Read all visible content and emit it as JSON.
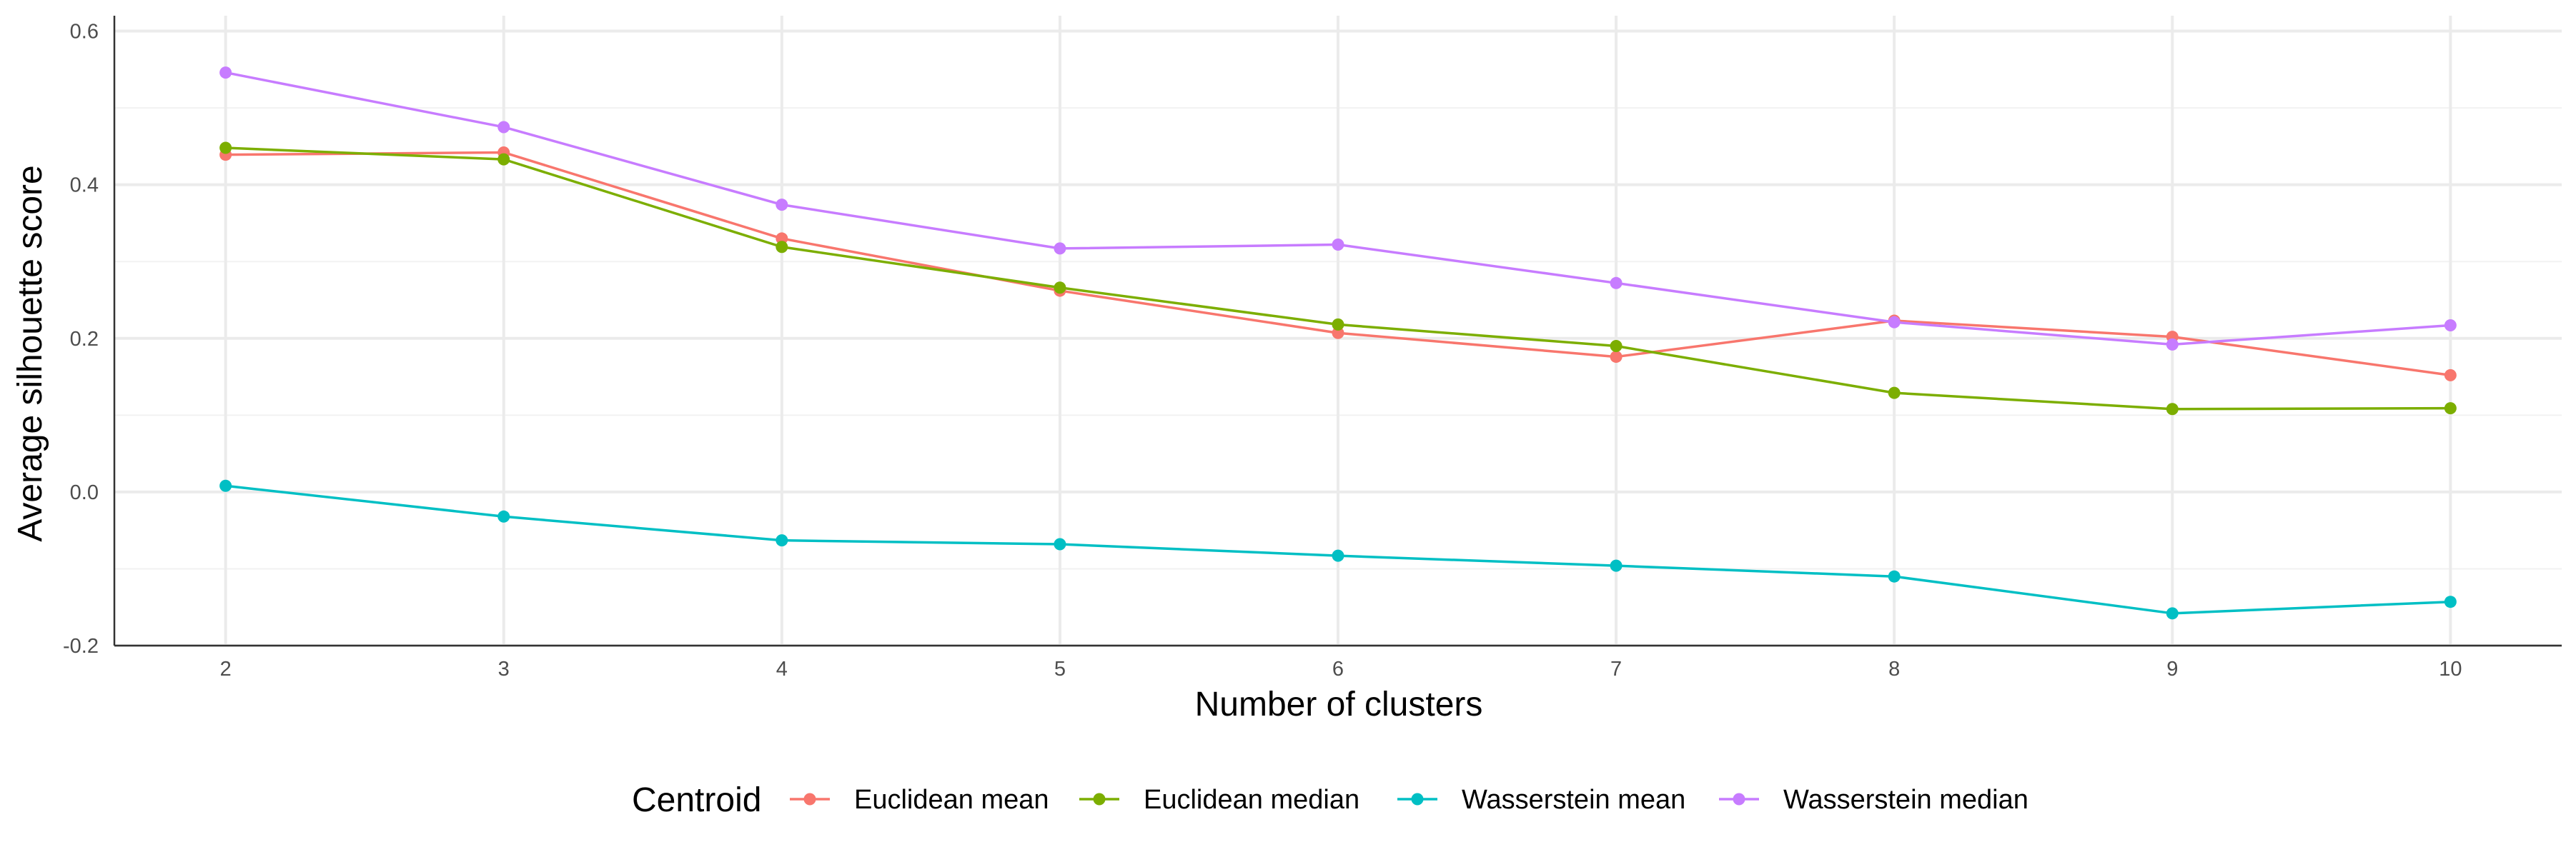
{
  "chart_data": {
    "type": "line",
    "xlabel": "Number of clusters",
    "ylabel": "Average silhouette score",
    "x": [
      2,
      3,
      4,
      5,
      6,
      7,
      8,
      9,
      10
    ],
    "xlim": [
      1.6,
      10.4
    ],
    "ylim": [
      -0.2,
      0.62
    ],
    "xticks": [
      "2",
      "3",
      "4",
      "5",
      "6",
      "7",
      "8",
      "9",
      "10"
    ],
    "yticks": [
      "-0.2",
      "0.0",
      "0.2",
      "0.4",
      "0.6"
    ],
    "ytick_values": [
      -0.2,
      0.0,
      0.2,
      0.4,
      0.6
    ],
    "grid": true,
    "legend_title": "Centroid",
    "legend_position": "bottom",
    "series": [
      {
        "name": "Euclidean mean",
        "color": "#F8766D",
        "values": [
          0.439,
          0.442,
          0.33,
          0.262,
          0.207,
          0.176,
          0.223,
          0.202,
          0.152
        ]
      },
      {
        "name": "Euclidean median",
        "color": "#7CAE00",
        "values": [
          0.448,
          0.433,
          0.319,
          0.266,
          0.218,
          0.19,
          0.129,
          0.108,
          0.109
        ]
      },
      {
        "name": "Wasserstein mean",
        "color": "#00BFC4",
        "values": [
          0.008,
          -0.032,
          -0.063,
          -0.068,
          -0.083,
          -0.096,
          -0.11,
          -0.158,
          -0.143
        ]
      },
      {
        "name": "Wasserstein median",
        "color": "#C77CFF",
        "values": [
          0.546,
          0.475,
          0.374,
          0.317,
          0.322,
          0.272,
          0.221,
          0.192,
          0.217
        ]
      }
    ]
  }
}
